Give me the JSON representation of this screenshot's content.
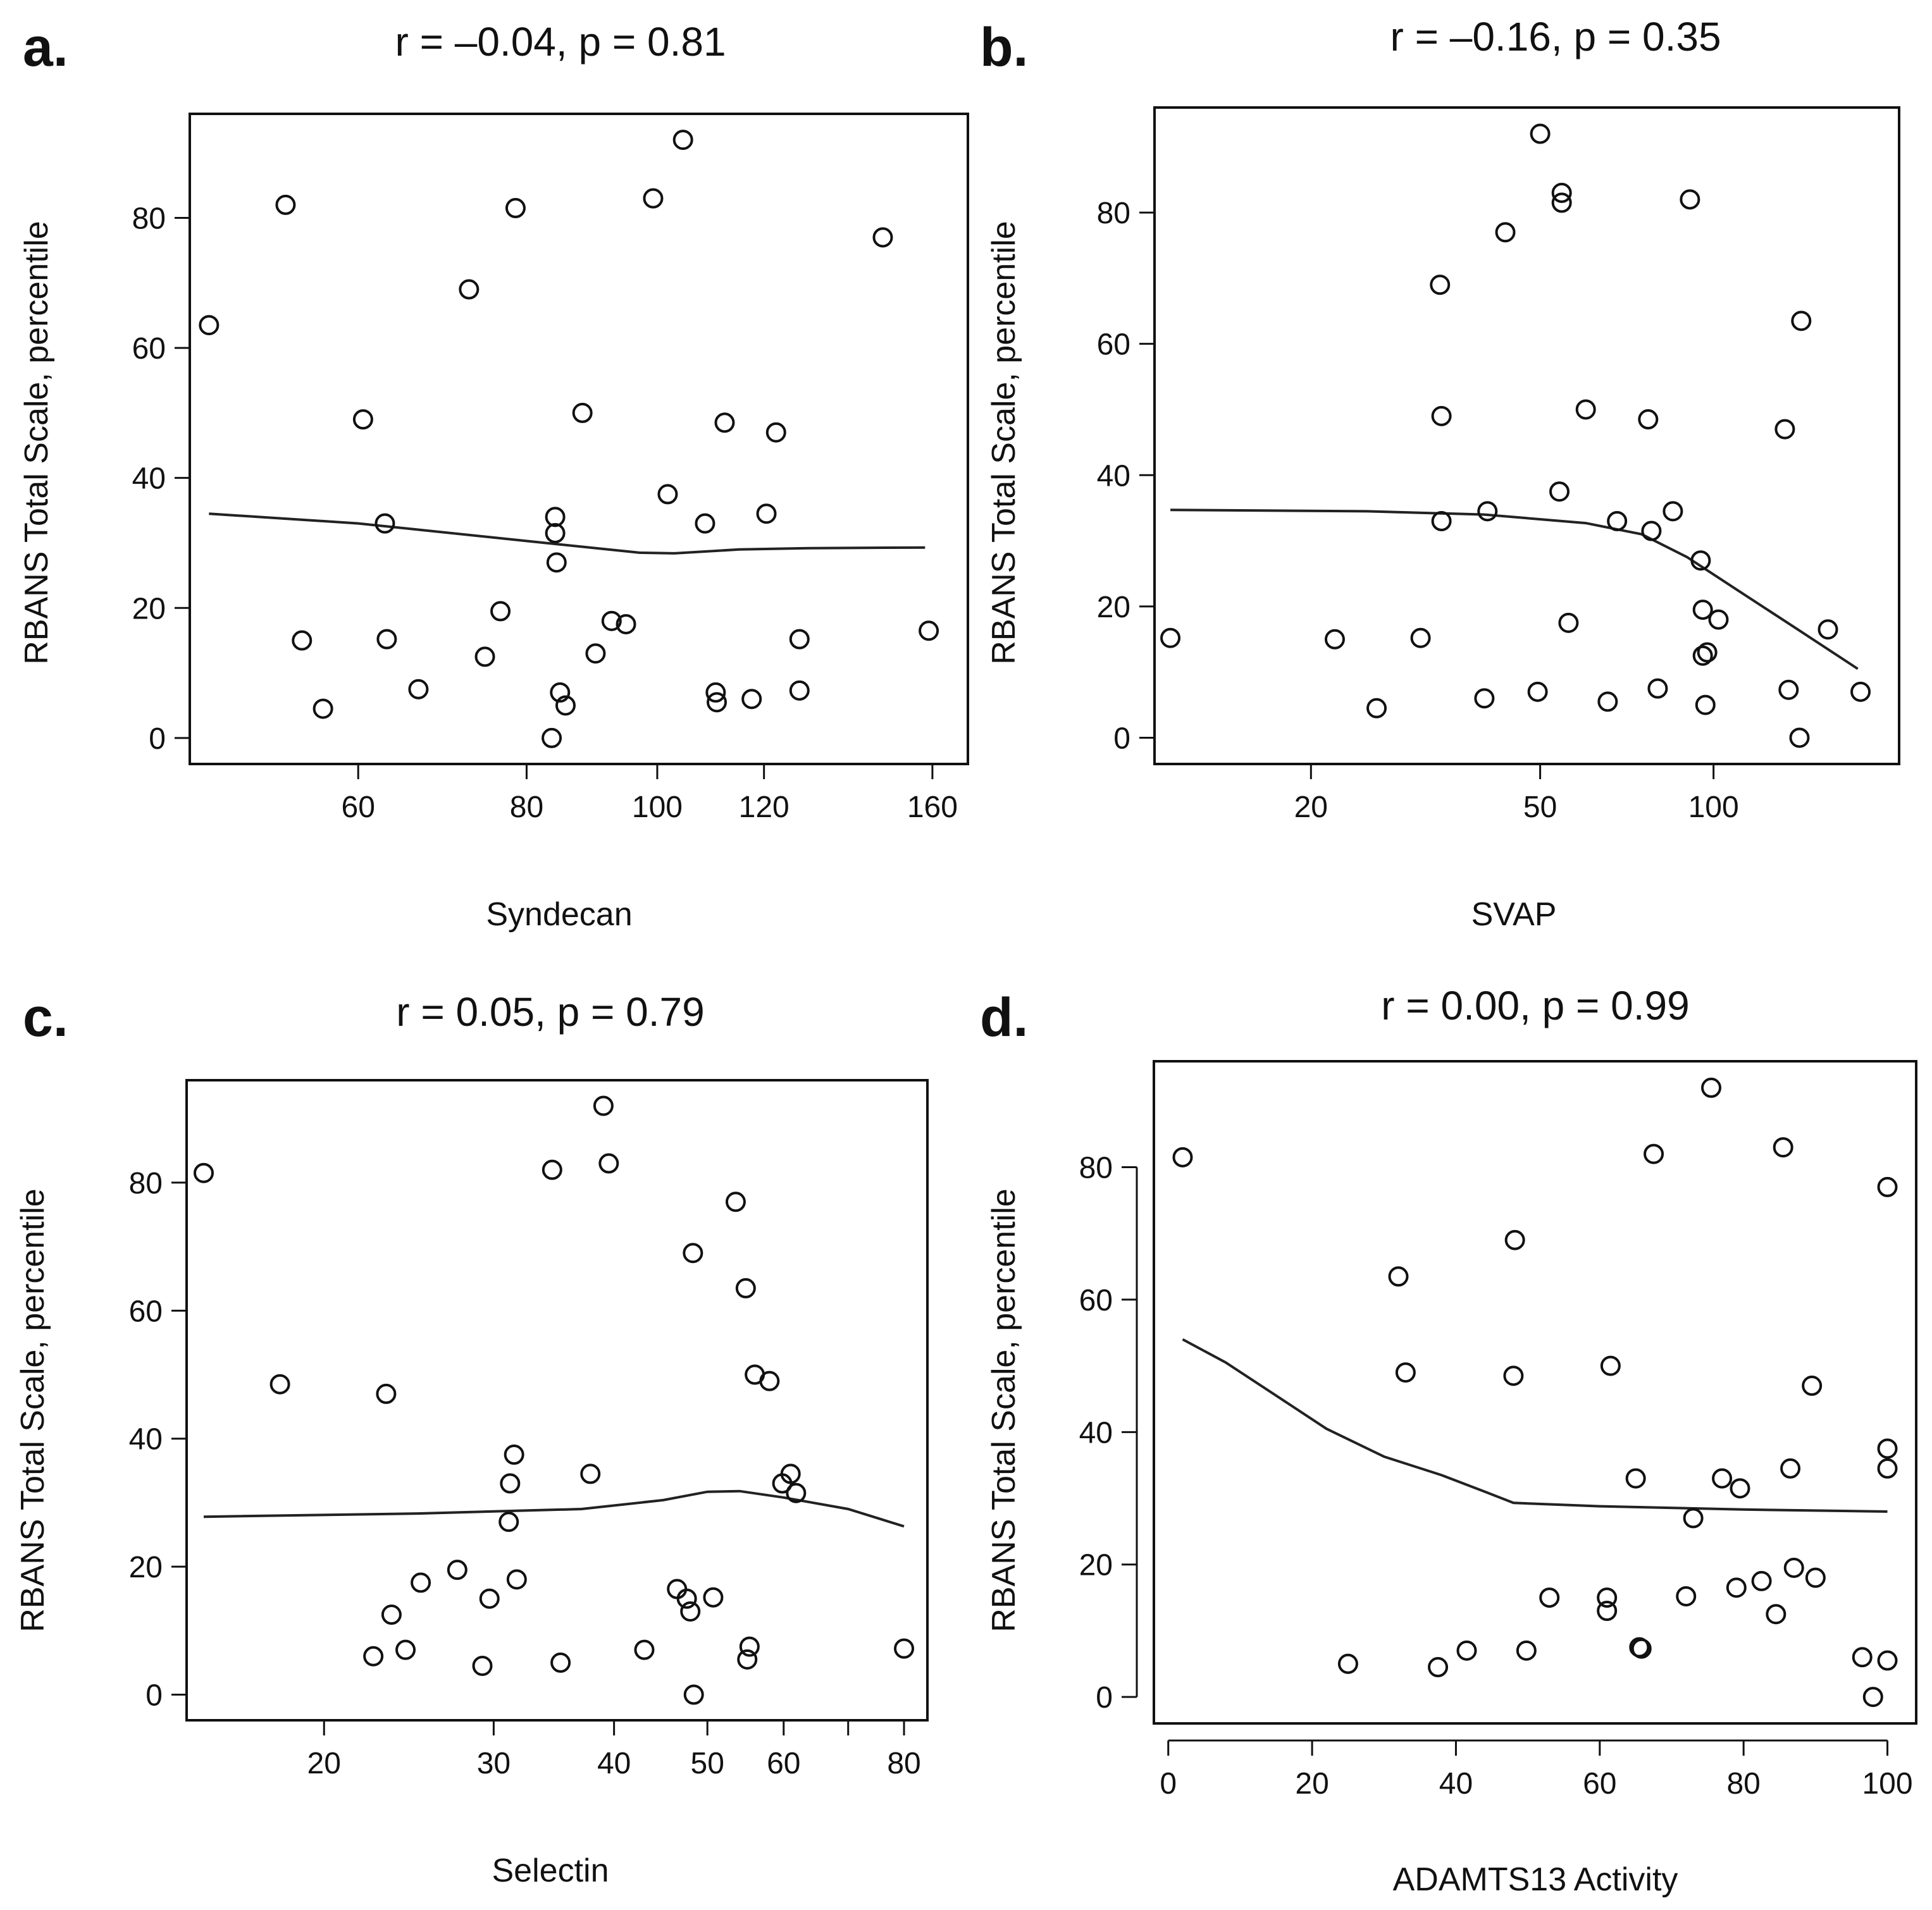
{
  "chart_data": [
    {
      "panel": "a.",
      "type": "scatter",
      "title": "r = –0.04, p = 0.81",
      "xlabel": "Syndecan",
      "ylabel": "RBANS Total Scale, percentile",
      "x_scale": "log",
      "xlim": [
        45,
        170
      ],
      "ylim": [
        -4,
        96
      ],
      "x_ticks": [
        60,
        80,
        100,
        120,
        160
      ],
      "x_ticks_labeled": [
        60,
        80,
        100,
        120,
        160
      ],
      "y_ticks": [
        0,
        20,
        40,
        60,
        80
      ],
      "points": [
        [
          46.5,
          63.5
        ],
        [
          53,
          82
        ],
        [
          54.5,
          15
        ],
        [
          56.5,
          4.5
        ],
        [
          60.5,
          49
        ],
        [
          62.8,
          33
        ],
        [
          63,
          15.2
        ],
        [
          66.5,
          7.5
        ],
        [
          72.5,
          69
        ],
        [
          74.5,
          12.5
        ],
        [
          76.5,
          19.5
        ],
        [
          78.5,
          81.5
        ],
        [
          83.5,
          0
        ],
        [
          84,
          34
        ],
        [
          84,
          31.5
        ],
        [
          84.2,
          27
        ],
        [
          84.7,
          7
        ],
        [
          85.5,
          5
        ],
        [
          88,
          50
        ],
        [
          90,
          13
        ],
        [
          92.5,
          18
        ],
        [
          94.8,
          17.5
        ],
        [
          99.3,
          83
        ],
        [
          101.8,
          37.5
        ],
        [
          104.5,
          92
        ],
        [
          108.5,
          33
        ],
        [
          110.5,
          7
        ],
        [
          110.7,
          5.5
        ],
        [
          112.2,
          48.5
        ],
        [
          117.5,
          6
        ],
        [
          120.5,
          34.5
        ],
        [
          122.5,
          47
        ],
        [
          127.5,
          15.2
        ],
        [
          127.5,
          7.3
        ],
        [
          147,
          77
        ],
        [
          159,
          16.5
        ]
      ],
      "smooth": [
        [
          46.5,
          34.5
        ],
        [
          60,
          33
        ],
        [
          80,
          30.3
        ],
        [
          97,
          28.5
        ],
        [
          103,
          28.4
        ],
        [
          115,
          29
        ],
        [
          130,
          29.2
        ],
        [
          158,
          29.3
        ]
      ]
    },
    {
      "panel": "b.",
      "type": "scatter",
      "title": "r = –0.16, p = 0.35",
      "xlabel": "SVAP",
      "ylabel": "RBANS Total Scale, percentile",
      "x_scale": "log",
      "xlim": [
        10.7,
        210
      ],
      "ylim": [
        -4,
        96
      ],
      "x_ticks": [
        20,
        50,
        100
      ],
      "x_ticks_labeled": [
        20,
        50,
        100
      ],
      "y_ticks": [
        0,
        20,
        40,
        60,
        80
      ],
      "points": [
        [
          11.4,
          15.2
        ],
        [
          22,
          15
        ],
        [
          26,
          4.5
        ],
        [
          31,
          15.2
        ],
        [
          33.5,
          69
        ],
        [
          33.7,
          49
        ],
        [
          33.7,
          33
        ],
        [
          40,
          6
        ],
        [
          40.5,
          34.5
        ],
        [
          43.5,
          77
        ],
        [
          49.5,
          7
        ],
        [
          50,
          92
        ],
        [
          54,
          37.5
        ],
        [
          54.5,
          83
        ],
        [
          54.5,
          81.5
        ],
        [
          56,
          17.5
        ],
        [
          60,
          50
        ],
        [
          65.5,
          5.5
        ],
        [
          68,
          33
        ],
        [
          77,
          48.5
        ],
        [
          78,
          31.5
        ],
        [
          80,
          7.5
        ],
        [
          85,
          34.5
        ],
        [
          91,
          82
        ],
        [
          95,
          27
        ],
        [
          95.8,
          19.5
        ],
        [
          95.8,
          12.5
        ],
        [
          96.8,
          5
        ],
        [
          97.5,
          13
        ],
        [
          102,
          18
        ],
        [
          133,
          47
        ],
        [
          135,
          7.3
        ],
        [
          141,
          0
        ],
        [
          142,
          63.5
        ],
        [
          158,
          16.5
        ],
        [
          180,
          7
        ]
      ],
      "smooth": [
        [
          11.4,
          34.7
        ],
        [
          25,
          34.5
        ],
        [
          40,
          34
        ],
        [
          60,
          32.7
        ],
        [
          75,
          31
        ],
        [
          90,
          27.5
        ],
        [
          110,
          22.5
        ],
        [
          140,
          16.5
        ],
        [
          178,
          10.5
        ]
      ]
    },
    {
      "panel": "c.",
      "type": "scatter",
      "title": "r = 0.05, p = 0.79",
      "xlabel": "Selectin",
      "ylabel": "RBANS Total Scale, percentile",
      "x_scale": "log",
      "xlim": [
        14.4,
        84.6
      ],
      "ylim": [
        -4,
        96
      ],
      "x_ticks": [
        20,
        30,
        40,
        50,
        60,
        70,
        80
      ],
      "x_ticks_labeled": [
        20,
        30,
        40,
        50,
        60,
        80
      ],
      "y_ticks": [
        0,
        20,
        40,
        60,
        80
      ],
      "points": [
        [
          15,
          81.5
        ],
        [
          18,
          48.5
        ],
        [
          22.5,
          6
        ],
        [
          23.2,
          47
        ],
        [
          23.5,
          12.5
        ],
        [
          24.3,
          7
        ],
        [
          25.2,
          17.5
        ],
        [
          27.5,
          19.5
        ],
        [
          29.2,
          4.5
        ],
        [
          29.7,
          15
        ],
        [
          31.2,
          33
        ],
        [
          31.1,
          27
        ],
        [
          31.5,
          37.5
        ],
        [
          31.7,
          18
        ],
        [
          34.5,
          82
        ],
        [
          35.2,
          5
        ],
        [
          37.8,
          34.5
        ],
        [
          39,
          92
        ],
        [
          39.5,
          83
        ],
        [
          43,
          7
        ],
        [
          46.5,
          16.5
        ],
        [
          47.6,
          15
        ],
        [
          48,
          13
        ],
        [
          48.3,
          69
        ],
        [
          48.4,
          0
        ],
        [
          50.7,
          15.2
        ],
        [
          53.5,
          77
        ],
        [
          54.8,
          63.5
        ],
        [
          55,
          5.5
        ],
        [
          55.3,
          7.5
        ],
        [
          56,
          50
        ],
        [
          58,
          49
        ],
        [
          59.8,
          33
        ],
        [
          61,
          34.5
        ],
        [
          61.8,
          31.5
        ],
        [
          80,
          7.2
        ]
      ],
      "smooth": [
        [
          15,
          27.8
        ],
        [
          25,
          28.3
        ],
        [
          37,
          29
        ],
        [
          45,
          30.4
        ],
        [
          50,
          31.7
        ],
        [
          54,
          31.8
        ],
        [
          60,
          30.8
        ],
        [
          70,
          29
        ],
        [
          80,
          26.3
        ]
      ]
    },
    {
      "panel": "d.",
      "type": "scatter",
      "title": "r = 0.00, p = 0.99",
      "xlabel": "ADAMTS13 Activity",
      "ylabel": "RBANS Total Scale, percentile",
      "x_scale": "linear",
      "xlim": [
        -2,
        104
      ],
      "ylim": [
        -4,
        96
      ],
      "x_ticks": [
        0,
        20,
        40,
        60,
        80,
        100
      ],
      "x_ticks_labeled": [
        0,
        20,
        40,
        60,
        80,
        100
      ],
      "y_ticks": [
        0,
        20,
        40,
        60,
        80
      ],
      "points": [
        [
          2,
          81.5
        ],
        [
          25,
          5
        ],
        [
          32,
          63.5
        ],
        [
          33,
          49
        ],
        [
          37.5,
          4.5
        ],
        [
          41.5,
          7
        ],
        [
          48,
          48.5
        ],
        [
          48.2,
          69
        ],
        [
          49.8,
          7
        ],
        [
          53,
          15
        ],
        [
          61,
          15
        ],
        [
          61,
          13
        ],
        [
          61.5,
          50
        ],
        [
          65,
          33
        ],
        [
          65.5,
          7.5
        ],
        [
          65.8,
          7.3
        ],
        [
          67.5,
          82
        ],
        [
          72,
          15.2
        ],
        [
          73,
          27
        ],
        [
          75.5,
          92
        ],
        [
          77,
          33
        ],
        [
          79,
          16.5
        ],
        [
          79.5,
          31.5
        ],
        [
          82.5,
          17.5
        ],
        [
          84.5,
          12.5
        ],
        [
          85.5,
          83
        ],
        [
          86.5,
          34.5
        ],
        [
          87,
          19.5
        ],
        [
          89.5,
          47
        ],
        [
          90,
          18
        ],
        [
          96.5,
          6
        ],
        [
          98,
          0
        ],
        [
          100,
          77
        ],
        [
          100,
          37.5
        ],
        [
          100,
          34.5
        ],
        [
          100,
          5.5
        ]
      ],
      "smooth": [
        [
          2,
          54
        ],
        [
          8,
          50.5
        ],
        [
          15,
          45.5
        ],
        [
          22,
          40.5
        ],
        [
          30,
          36.3
        ],
        [
          38,
          33.5
        ],
        [
          44,
          31
        ],
        [
          48,
          29.3
        ],
        [
          60,
          28.8
        ],
        [
          80,
          28.3
        ],
        [
          100,
          28
        ]
      ]
    }
  ]
}
